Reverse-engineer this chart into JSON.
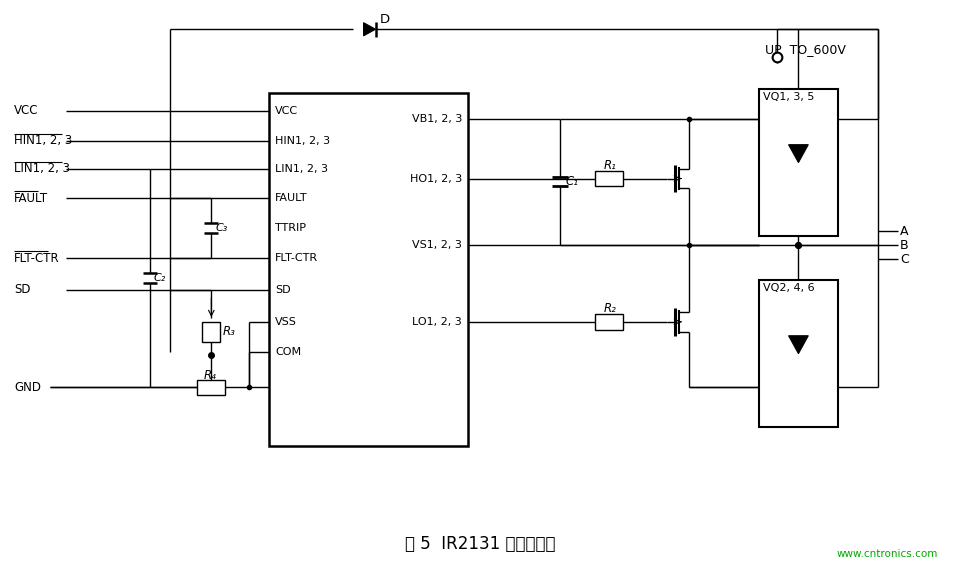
{
  "title": "图 5  IR2131 的驱动电路",
  "watermark": "www.cntronics.com",
  "bg_color": "#ffffff",
  "line_color": "#000000",
  "fig_width": 9.61,
  "fig_height": 5.67,
  "dpi": 100,
  "ic_left_pins": [
    "VCC",
    "HIN1, 2, 3",
    "LIN1, 2, 3",
    "FAULT",
    "TTRIP",
    "FLT-CTR",
    "SD",
    "VSS",
    "COM"
  ],
  "ic_left_overline": [
    false,
    true,
    true,
    true,
    false,
    true,
    false,
    false,
    false
  ],
  "ic_right_pins": [
    "VB1, 2, 3",
    "HO1, 2, 3",
    "VS1, 2, 3",
    "LO1, 2, 3"
  ],
  "left_signals": [
    "VCC",
    "HIN1, 2, 3",
    "LIN1, 2, 3",
    "FAULT",
    "FLT-CTR",
    "SD"
  ],
  "left_overline": [
    false,
    true,
    true,
    true,
    true,
    false
  ],
  "vq_top_label": "VQ1, 3, 5",
  "vq_bot_label": "VQ2, 4, 6",
  "up_label": "UP  TO_600V",
  "diode_label": "D",
  "c1_label": "C₁",
  "c2_label": "C₂",
  "c3_label": "C₃",
  "r1_label": "R₁",
  "r2_label": "R₂",
  "r3_label": "R₃",
  "r4_label": "R₄",
  "abc_labels": [
    "A",
    "B",
    "C"
  ]
}
